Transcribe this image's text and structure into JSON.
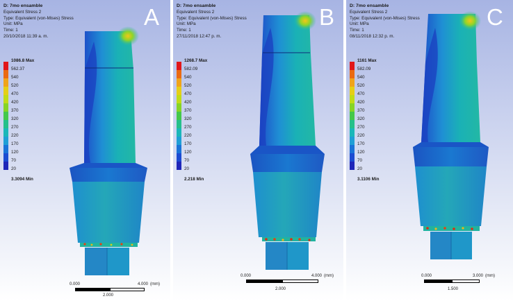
{
  "colors": {
    "legend": [
      "#e1161a",
      "#ea6a10",
      "#f0a41a",
      "#e5cf17",
      "#c0dc18",
      "#86d426",
      "#45c84a",
      "#24c08a",
      "#1ab7b9",
      "#1f9fd6",
      "#1a73d8",
      "#1c4bd2",
      "#1f26b9"
    ]
  },
  "panels": [
    {
      "letter": "A",
      "title": "D: 7mo ensamble",
      "line2": "Equivalent Stress 2",
      "line3": "Type: Equivalent (von-Mises) Stress",
      "line4": "Unit: MPa",
      "line5": "Time: 1",
      "date": "20/10/2018 11:39 a. m.",
      "legend_max": "1086.8 Max",
      "legend_values": [
        "562.37",
        "540",
        "520",
        "470",
        "420",
        "370",
        "320",
        "270",
        "220",
        "170",
        "120",
        "70",
        "20"
      ],
      "legend_min": "3.3094 Min",
      "scale_left": "0.000",
      "scale_right": "4.000",
      "scale_unit": "(mm)",
      "scale_mid": "2.000"
    },
    {
      "letter": "B",
      "title": "D: 7mo ensamble",
      "line2": "Equivalent Stress 2",
      "line3": "Type: Equivalent (von-Mises) Stress",
      "line4": "Unit: MPa",
      "line5": "Time: 1",
      "date": "27/11/2018 12:47 p. m.",
      "legend_max": "1268.7 Max",
      "legend_values": [
        "582.09",
        "540",
        "520",
        "470",
        "420",
        "370",
        "320",
        "270",
        "220",
        "170",
        "120",
        "70",
        "20"
      ],
      "legend_min": "2.218 Min",
      "scale_left": "0.000",
      "scale_right": "4.000",
      "scale_unit": "(mm)",
      "scale_mid": "2.000"
    },
    {
      "letter": "C",
      "title": "D: 7mo ensamble",
      "line2": "Equivalent Stress 2",
      "line3": "Type: Equivalent (von-Mises) Stress",
      "line4": "Unit: MPa",
      "line5": "Time: 1",
      "date": "08/11/2018 12:32 p. m.",
      "legend_max": "1161 Max",
      "legend_values": [
        "582.09",
        "540",
        "520",
        "470",
        "420",
        "370",
        "320",
        "270",
        "220",
        "170",
        "120",
        "70",
        "20"
      ],
      "legend_min": "3.1106 Min",
      "scale_left": "0.000",
      "scale_right": "3.000",
      "scale_unit": "(mm)",
      "scale_mid": "1.500"
    }
  ]
}
